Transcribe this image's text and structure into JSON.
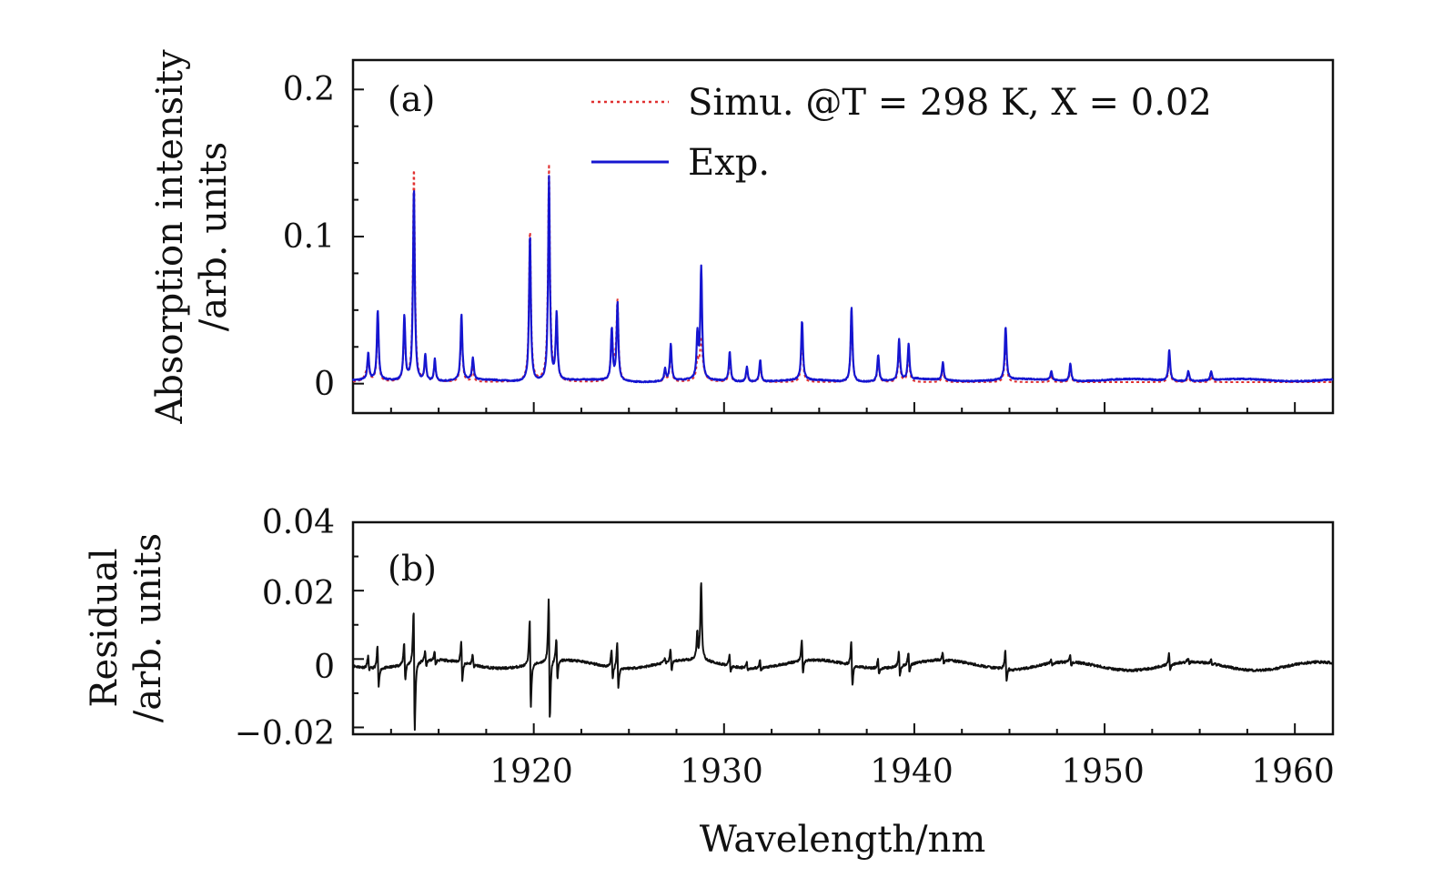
{
  "chart_data": [
    {
      "type": "line",
      "panel_label": "(a)",
      "ylabel_line1": "Absorption intensity",
      "ylabel_line2": "/arb. units",
      "xlim": [
        1910.5,
        1962
      ],
      "ylim": [
        -0.02,
        0.22
      ],
      "yticks": [
        {
          "value": 0,
          "label": "0"
        },
        {
          "value": 0.1,
          "label": "0.1"
        },
        {
          "value": 0.2,
          "label": "0.2"
        }
      ],
      "legend": {
        "position": "top-right",
        "entries": [
          {
            "series": "simu",
            "label": "Simu. @T = 298 K, X = 0.02",
            "style": "dotted"
          },
          {
            "series": "exp",
            "label": "Exp.",
            "style": "solid"
          }
        ]
      },
      "series": [
        {
          "name": "simu",
          "color": "#e03030",
          "baseline": 0.001,
          "peaks": [
            [
              1911.3,
              0.012
            ],
            [
              1911.8,
              0.045
            ],
            [
              1913.2,
              0.04
            ],
            [
              1913.7,
              0.141
            ],
            [
              1914.3,
              0.015
            ],
            [
              1914.8,
              0.013
            ],
            [
              1916.2,
              0.043
            ],
            [
              1916.8,
              0.01
            ],
            [
              1919.8,
              0.098
            ],
            [
              1920.8,
              0.137
            ],
            [
              1921.2,
              0.043
            ],
            [
              1924.1,
              0.032
            ],
            [
              1924.4,
              0.05
            ],
            [
              1926.9,
              0.006
            ],
            [
              1927.2,
              0.023
            ],
            [
              1928.6,
              0.012
            ],
            [
              1928.8,
              0.015
            ],
            [
              1930.3,
              0.017
            ],
            [
              1931.2,
              0.008
            ],
            [
              1931.9,
              0.012
            ],
            [
              1934.1,
              0.035
            ],
            [
              1936.7,
              0.049
            ],
            [
              1938.1,
              0.016
            ],
            [
              1939.2,
              0.025
            ],
            [
              1939.7,
              0.022
            ],
            [
              1941.5,
              0.01
            ],
            [
              1944.8,
              0.033
            ],
            [
              1947.2,
              0.005
            ],
            [
              1948.2,
              0.01
            ],
            [
              1953.4,
              0.018
            ],
            [
              1954.4,
              0.005
            ],
            [
              1955.6,
              0.004
            ]
          ],
          "residual_bumps": [
            [
              1911.2,
              0.005
            ],
            [
              1913.7,
              0.006
            ],
            [
              1919.8,
              0.006
            ],
            [
              1920.8,
              0.01
            ],
            [
              1924.3,
              0.009
            ],
            [
              1928.8,
              0.015
            ]
          ]
        },
        {
          "name": "exp",
          "color": "#1515d0",
          "baseline": 0.001,
          "peaks": [
            [
              1911.3,
              0.018
            ],
            [
              1911.8,
              0.047
            ],
            [
              1913.2,
              0.044
            ],
            [
              1913.7,
              0.132
            ],
            [
              1914.3,
              0.018
            ],
            [
              1914.8,
              0.015
            ],
            [
              1916.2,
              0.045
            ],
            [
              1916.8,
              0.015
            ],
            [
              1919.8,
              0.1
            ],
            [
              1920.8,
              0.139
            ],
            [
              1921.2,
              0.045
            ],
            [
              1924.1,
              0.035
            ],
            [
              1924.4,
              0.053
            ],
            [
              1926.9,
              0.008
            ],
            [
              1927.2,
              0.025
            ],
            [
              1928.6,
              0.03
            ],
            [
              1928.8,
              0.076
            ],
            [
              1930.3,
              0.02
            ],
            [
              1931.2,
              0.01
            ],
            [
              1931.9,
              0.015
            ],
            [
              1934.1,
              0.04
            ],
            [
              1936.7,
              0.051
            ],
            [
              1938.1,
              0.018
            ],
            [
              1939.2,
              0.028
            ],
            [
              1939.7,
              0.024
            ],
            [
              1941.5,
              0.012
            ],
            [
              1944.8,
              0.036
            ],
            [
              1947.2,
              0.006
            ],
            [
              1948.2,
              0.012
            ],
            [
              1953.4,
              0.021
            ],
            [
              1954.4,
              0.007
            ],
            [
              1955.6,
              0.006
            ]
          ]
        }
      ]
    },
    {
      "type": "line",
      "panel_label": "(b)",
      "ylabel_line1": "Residual",
      "ylabel_line2": "/arb. units",
      "xlabel": "Wavelength/nm",
      "xlim": [
        1910.5,
        1962
      ],
      "ylim": [
        -0.022,
        0.04
      ],
      "xticks": [
        {
          "value": 1920,
          "label": "1920"
        },
        {
          "value": 1930,
          "label": "1930"
        },
        {
          "value": 1940,
          "label": "1940"
        },
        {
          "value": 1950,
          "label": "1950"
        },
        {
          "value": 1960,
          "label": "1960"
        }
      ],
      "yticks": [
        {
          "value": -0.02,
          "label": "−0.02"
        },
        {
          "value": 0,
          "label": "0"
        },
        {
          "value": 0.02,
          "label": "0.02"
        },
        {
          "value": 0.04,
          "label": "0.04"
        }
      ],
      "series": [
        {
          "name": "residual",
          "color": "#111111"
        }
      ]
    }
  ]
}
